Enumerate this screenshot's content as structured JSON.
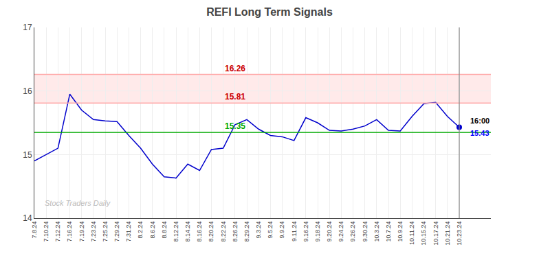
{
  "chart_data": {
    "type": "line",
    "title": "REFI Long Term Signals",
    "categories": [
      "7.8.24",
      "7.10.24",
      "7.12.24",
      "7.16.24",
      "7.19.24",
      "7.23.24",
      "7.25.24",
      "7.29.24",
      "7.31.24",
      "8.2.24",
      "8.6.24",
      "8.8.24",
      "8.12.24",
      "8.14.24",
      "8.16.24",
      "8.20.24",
      "8.22.24",
      "8.26.24",
      "8.29.24",
      "9.3.24",
      "9.5.24",
      "9.9.24",
      "9.11.24",
      "9.16.24",
      "9.18.24",
      "9.20.24",
      "9.24.24",
      "9.26.24",
      "9.30.24",
      "10.3.24",
      "10.7.24",
      "10.9.24",
      "10.11.24",
      "10.15.24",
      "10.17.24",
      "10.21.24",
      "10.23.24"
    ],
    "values": [
      14.9,
      15.0,
      15.1,
      15.95,
      15.7,
      15.55,
      15.53,
      15.52,
      15.3,
      15.1,
      14.85,
      14.65,
      14.63,
      14.85,
      14.75,
      15.08,
      15.1,
      15.47,
      15.55,
      15.4,
      15.3,
      15.28,
      15.22,
      15.58,
      15.5,
      15.38,
      15.37,
      15.4,
      15.45,
      15.55,
      15.38,
      15.37,
      15.6,
      15.8,
      15.82,
      15.6,
      15.43
    ],
    "color": "#0000cc",
    "marker": "circle",
    "ylim": [
      14.0,
      17.0
    ],
    "yticks": [
      14,
      15,
      16,
      17
    ],
    "grid": true,
    "hlines": [
      {
        "value": 16.26,
        "color": "#ffaaaa",
        "label": "16.26",
        "label_color": "#cc0000"
      },
      {
        "value": 15.81,
        "color": "#ffaaaa",
        "label": "15.81",
        "label_color": "#cc0000"
      },
      {
        "value": 15.35,
        "color": "#00aa00",
        "label": "15.35",
        "label_color": "#00aa00"
      }
    ],
    "band": {
      "from": 15.81,
      "to": 16.26,
      "color": "#ffaaaa"
    },
    "vline": {
      "category": "10.23.24",
      "color": "#888888"
    },
    "annotations": [
      {
        "text": "16:00",
        "color": "#000000"
      },
      {
        "text": "15.43",
        "color": "#0000ff"
      }
    ],
    "watermark": {
      "text": "Stock Traders Daily",
      "color": "#bbbbbb"
    }
  }
}
